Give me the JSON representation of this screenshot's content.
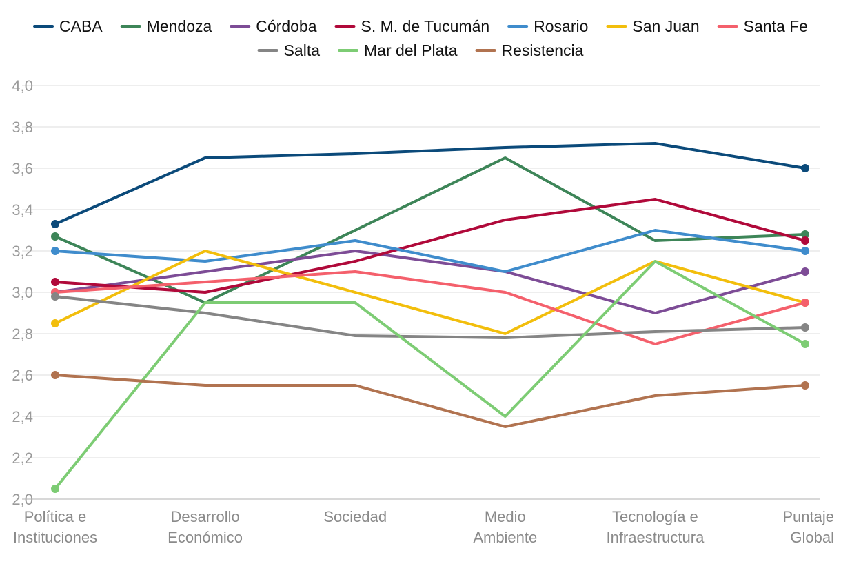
{
  "chart_data": {
    "type": "line",
    "title": "",
    "xlabel": "",
    "ylabel": "",
    "ylim": [
      2.0,
      4.0
    ],
    "yticks": [
      "2,0",
      "2,2",
      "2,4",
      "2,6",
      "2,8",
      "3,0",
      "3,2",
      "3,4",
      "3,6",
      "3,8",
      "4,0"
    ],
    "grid": true,
    "legend_position": "top",
    "categories": [
      [
        "Política e",
        "Instituciones"
      ],
      [
        "Desarrollo",
        "Económico"
      ],
      [
        "Sociedad"
      ],
      [
        "Medio",
        "Ambiente"
      ],
      [
        "Tecnología e",
        "Infraestructura"
      ],
      [
        "Puntaje",
        "Global"
      ]
    ],
    "series": [
      {
        "name": "CABA",
        "color": "#0b4a7a",
        "values": [
          3.33,
          3.65,
          3.67,
          3.7,
          3.72,
          3.6
        ]
      },
      {
        "name": "Mendoza",
        "color": "#3d8558",
        "values": [
          3.27,
          2.95,
          3.3,
          3.65,
          3.25,
          3.28
        ]
      },
      {
        "name": "Córdoba",
        "color": "#7d4c96",
        "values": [
          3.0,
          3.1,
          3.2,
          3.1,
          2.9,
          3.1
        ]
      },
      {
        "name": "S. M. de Tucumán",
        "color": "#b0093a",
        "values": [
          3.05,
          3.0,
          3.15,
          3.35,
          3.45,
          3.25
        ]
      },
      {
        "name": "Rosario",
        "color": "#3f8ccc",
        "values": [
          3.2,
          3.15,
          3.25,
          3.1,
          3.3,
          3.2
        ]
      },
      {
        "name": "San Juan",
        "color": "#f2be0c",
        "values": [
          2.85,
          3.2,
          3.0,
          2.8,
          3.15,
          2.95
        ]
      },
      {
        "name": "Santa Fe",
        "color": "#f4606c",
        "values": [
          3.0,
          3.05,
          3.1,
          3.0,
          2.75,
          2.95
        ]
      },
      {
        "name": "Salta",
        "color": "#858585",
        "values": [
          2.98,
          2.9,
          2.79,
          2.78,
          2.81,
          2.83
        ]
      },
      {
        "name": "Mar del Plata",
        "color": "#7dcc74",
        "values": [
          2.05,
          2.95,
          2.95,
          2.4,
          3.15,
          2.75
        ]
      },
      {
        "name": "Resistencia",
        "color": "#b17350",
        "values": [
          2.6,
          2.55,
          2.55,
          2.35,
          2.5,
          2.55
        ]
      }
    ],
    "legend_rows": [
      [
        0,
        1,
        2,
        3,
        4,
        5,
        6
      ],
      [
        7,
        8,
        9
      ]
    ]
  }
}
